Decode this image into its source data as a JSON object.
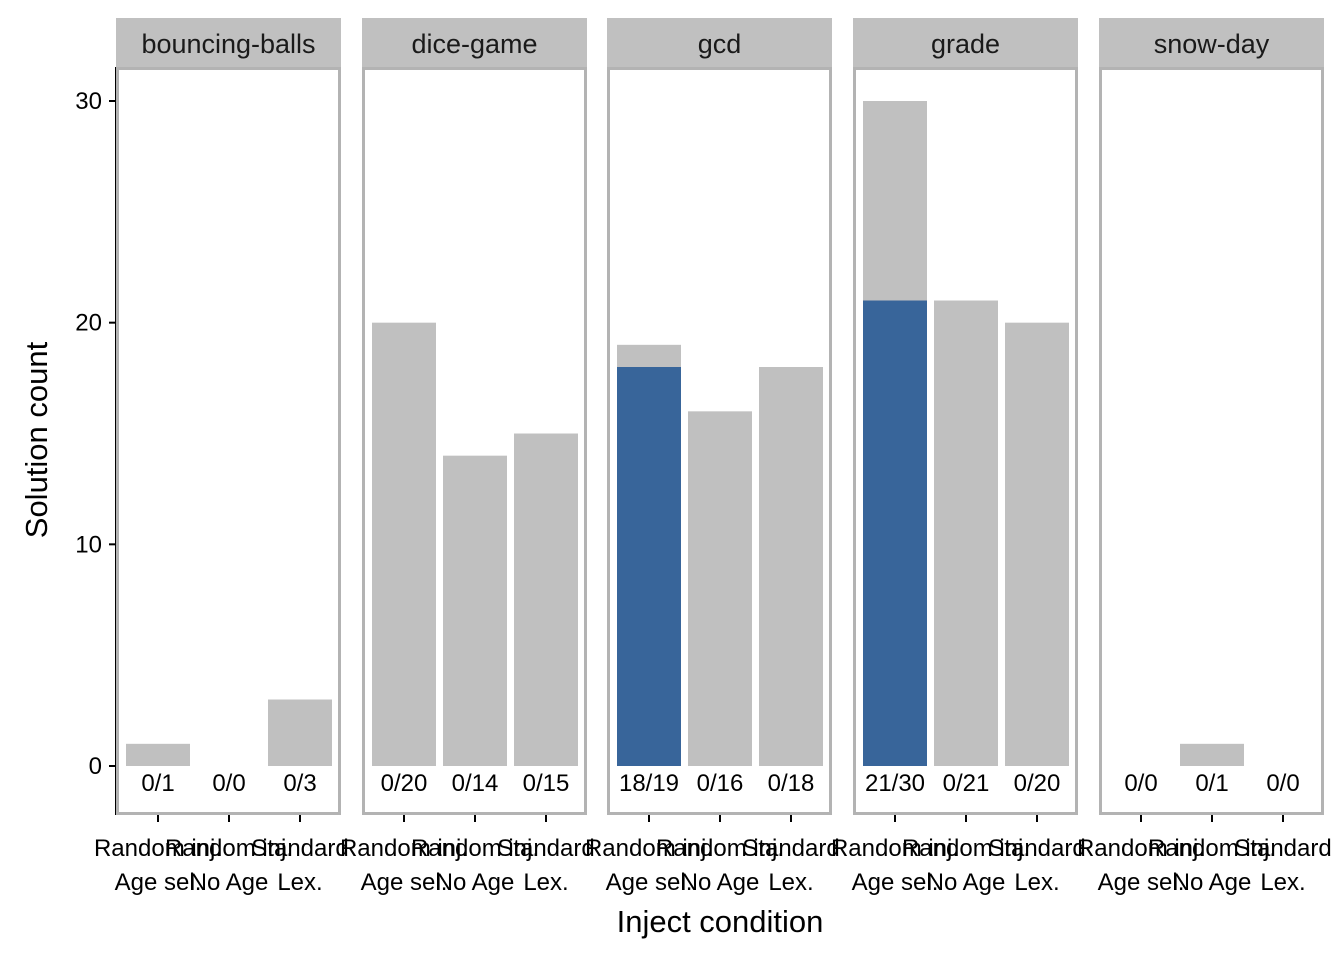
{
  "chart_data": {
    "type": "bar",
    "title": "",
    "xlabel": "Inject condition",
    "ylabel": "Solution count",
    "ylim": [
      0,
      31
    ],
    "yticks": [
      0,
      10,
      20,
      30
    ],
    "grid": false,
    "legend": "none",
    "conditions": [
      {
        "line1": "Random inj.",
        "line2": "Age sel."
      },
      {
        "line1": "Random inj.",
        "line2": "No Age"
      },
      {
        "line1": "Standard",
        "line2": "Lex."
      }
    ],
    "colors": {
      "total": "#c0c0c0",
      "highlight": "#38659a",
      "frame": "#b3b3b3",
      "strip": "#c0c0c0"
    },
    "panels": [
      {
        "name": "bouncing-balls",
        "totals": [
          1,
          0,
          3
        ],
        "highlighted": [
          0,
          0,
          0
        ],
        "labels": [
          "0/1",
          "0/0",
          "0/3"
        ]
      },
      {
        "name": "dice-game",
        "totals": [
          20,
          14,
          15
        ],
        "highlighted": [
          0,
          0,
          0
        ],
        "labels": [
          "0/20",
          "0/14",
          "0/15"
        ]
      },
      {
        "name": "gcd",
        "totals": [
          19,
          16,
          18
        ],
        "highlighted": [
          18,
          0,
          0
        ],
        "labels": [
          "18/19",
          "0/16",
          "0/18"
        ]
      },
      {
        "name": "grade",
        "totals": [
          30,
          21,
          20
        ],
        "highlighted": [
          21,
          0,
          0
        ],
        "labels": [
          "21/30",
          "0/21",
          "0/20"
        ]
      },
      {
        "name": "snow-day",
        "totals": [
          0,
          1,
          0
        ],
        "highlighted": [
          0,
          0,
          0
        ],
        "labels": [
          "0/0",
          "0/1",
          "0/0"
        ]
      }
    ]
  }
}
